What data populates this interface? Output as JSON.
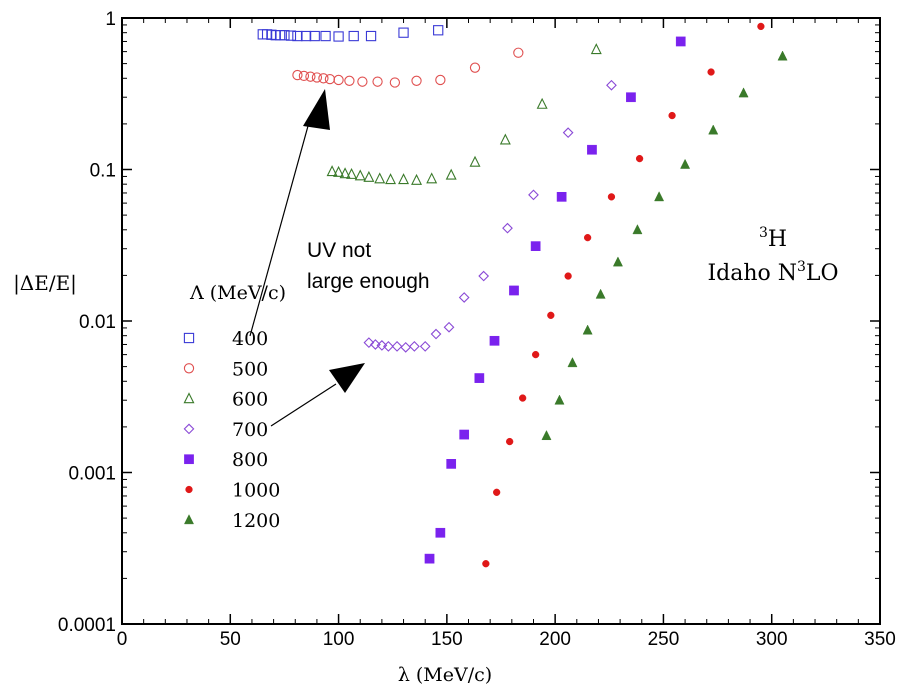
{
  "chart_data": {
    "type": "scatter",
    "title": "",
    "xlabel": "λ (MeV/c)",
    "ylabel": "|ΔE/E|",
    "xlim": [
      0,
      350
    ],
    "ylim": [
      0.0001,
      1
    ],
    "yscale": "log",
    "x_ticks": [
      "0",
      "50",
      "100",
      "150",
      "200",
      "250",
      "300",
      "350"
    ],
    "y_ticks": [
      "0.0001",
      "0.001",
      "0.01",
      "0.1",
      "1"
    ],
    "legend_title": "Λ (MeV/c)",
    "legend_placement": "left-center",
    "annotations": {
      "uv_line1": "UV not",
      "uv_line2": "large enough",
      "nucleus_sup": "3",
      "nucleus_base": "H",
      "model_prefix": "Idaho N",
      "model_sup": "3",
      "model_suffix": "LO"
    },
    "series": [
      {
        "name": "400",
        "marker": "open-square",
        "color": "#3a3ad6",
        "x": [
          65,
          67,
          69,
          71,
          73,
          75,
          78,
          81,
          85,
          89,
          94,
          100,
          107,
          115,
          130,
          146
        ],
        "y": [
          0.78,
          0.78,
          0.775,
          0.77,
          0.77,
          0.77,
          0.765,
          0.76,
          0.76,
          0.76,
          0.76,
          0.755,
          0.76,
          0.76,
          0.8,
          0.83
        ]
      },
      {
        "name": "500",
        "marker": "open-circle",
        "color": "#e05050",
        "x": [
          81,
          84,
          87,
          90,
          93,
          96,
          100,
          105,
          111,
          118,
          126,
          136,
          147,
          163,
          183
        ],
        "y": [
          0.42,
          0.415,
          0.41,
          0.405,
          0.4,
          0.395,
          0.39,
          0.385,
          0.38,
          0.38,
          0.375,
          0.385,
          0.39,
          0.47,
          0.59
        ]
      },
      {
        "name": "600",
        "marker": "open-triangle",
        "color": "#3a7a2a",
        "x": [
          97,
          100,
          103,
          106,
          110,
          114,
          119,
          124,
          130,
          136,
          143,
          152,
          163,
          177,
          194,
          219
        ],
        "y": [
          0.097,
          0.096,
          0.094,
          0.093,
          0.091,
          0.089,
          0.087,
          0.086,
          0.086,
          0.085,
          0.087,
          0.092,
          0.112,
          0.157,
          0.27,
          0.62
        ]
      },
      {
        "name": "700",
        "marker": "open-diamond",
        "color": "#8a4ad6",
        "x": [
          114,
          117,
          120,
          123,
          127,
          131,
          135,
          140,
          145,
          151,
          158,
          167,
          178,
          190,
          206,
          226
        ],
        "y": [
          0.0072,
          0.007,
          0.0069,
          0.0068,
          0.0068,
          0.0067,
          0.0068,
          0.0068,
          0.0082,
          0.0091,
          0.0143,
          0.0198,
          0.041,
          0.068,
          0.175,
          0.36
        ]
      },
      {
        "name": "800",
        "marker": "filled-square",
        "color": "#7a22ee",
        "x": [
          142,
          147,
          152,
          158,
          165,
          172,
          181,
          191,
          203,
          217,
          235,
          258
        ],
        "y": [
          0.00027,
          0.0004,
          0.00114,
          0.00178,
          0.0042,
          0.0074,
          0.0159,
          0.0312,
          0.066,
          0.135,
          0.3,
          0.7
        ]
      },
      {
        "name": "1000",
        "marker": "filled-circle",
        "color": "#e01818",
        "x": [
          168,
          173,
          179,
          185,
          191,
          198,
          206,
          215,
          226,
          239,
          254,
          272,
          295
        ],
        "y": [
          0.00025,
          0.00074,
          0.0016,
          0.0031,
          0.006,
          0.0109,
          0.0198,
          0.0355,
          0.066,
          0.118,
          0.227,
          0.44,
          0.88
        ]
      },
      {
        "name": "1200",
        "marker": "filled-triangle",
        "color": "#3a7a2a",
        "x": [
          196,
          202,
          208,
          215,
          221,
          229,
          238,
          248,
          260,
          273,
          287,
          305
        ],
        "y": [
          0.00175,
          0.003,
          0.0053,
          0.0087,
          0.015,
          0.0245,
          0.04,
          0.066,
          0.108,
          0.182,
          0.32,
          0.56
        ]
      }
    ]
  }
}
